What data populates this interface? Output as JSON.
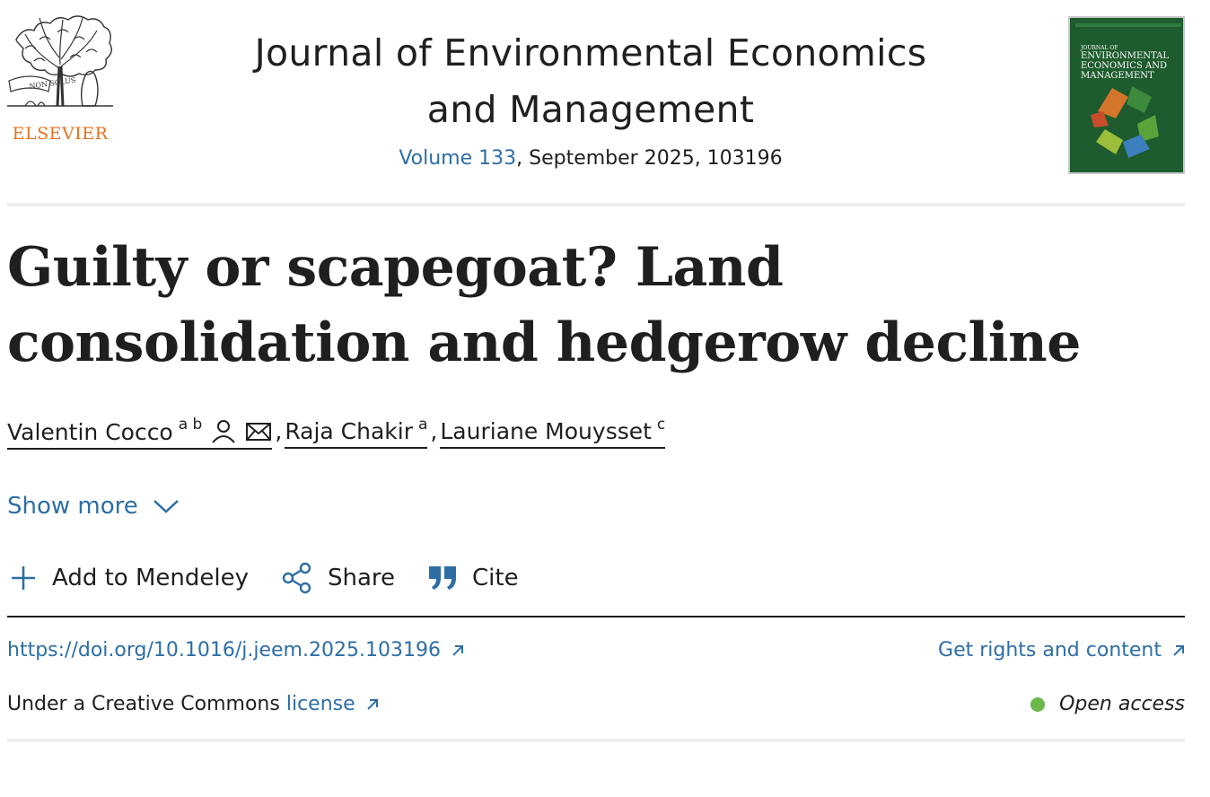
{
  "publisher": {
    "name": "ELSEVIER",
    "logo_motto": "NON SOLUS",
    "brand_color": "#e9711c"
  },
  "journal": {
    "title": "Journal of Environmental Economics and Management",
    "volume_link": "Volume 133",
    "issue_rest": ", September 2025, 103196"
  },
  "cover": {
    "line1": "JOURNAL OF",
    "line2": "ENVIRONMENTAL",
    "line3": "ECONOMICS AND",
    "line4": "MANAGEMENT"
  },
  "article": {
    "title": "Guilty or scapegoat? Land consolidation and hedgerow decline"
  },
  "authors": [
    {
      "name": "Valentin Cocco",
      "affil": "a b"
    },
    {
      "name": "Raja Chakir",
      "affil": "a"
    },
    {
      "name": "Lauriane Mouysset",
      "affil": "c"
    }
  ],
  "author_separator": ",",
  "show_more_label": "Show more",
  "actions": {
    "mendeley": "Add to Mendeley",
    "share": "Share",
    "cite": "Cite"
  },
  "doi": "https://doi.org/10.1016/j.jeem.2025.103196",
  "rights_link": "Get rights and content",
  "license": {
    "prefix": "Under a Creative Commons",
    "link": "license"
  },
  "open_access": "Open access",
  "colors": {
    "link": "#2e6ea5",
    "open_access_dot": "#6cb64b",
    "cover_green": "#1e5b2e"
  }
}
